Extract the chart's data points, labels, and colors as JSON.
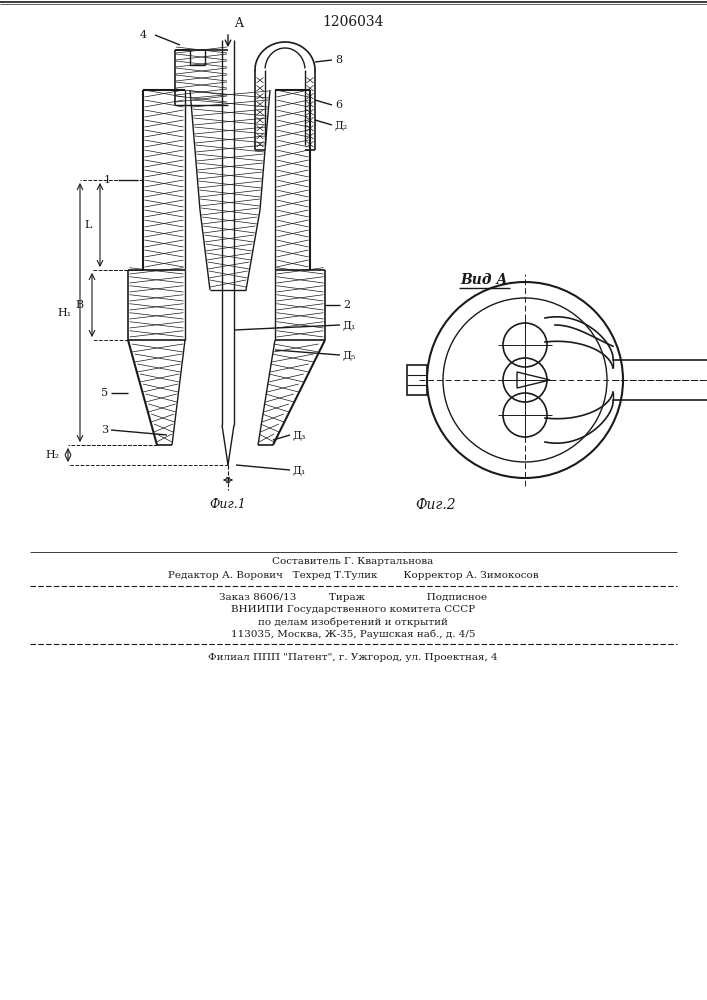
{
  "title": "1206034",
  "fig1_label": "Фиг.1",
  "fig2_label": "Фиг.2",
  "view_label": "Вид A",
  "editor_line": "Редактор А. Ворович   Техред Т.Тулик        Корректор А. Зимокосов",
  "composer_line": "Составитель Г. Квартальнова",
  "order_line": "Заказ 8606/13          Тираж                   Подписное",
  "org_line1": "ВНИИПИ Государственного комитета СССР",
  "org_line2": "по делам изобретений и открытий",
  "org_line3": "113035, Москва, Ж-35, Раушская наб., д. 4/5",
  "filial_line": "Филиал ППП \"Патент\", г. Ужгород, ул. Проектная, 4",
  "bg_color": "#ffffff",
  "line_color": "#1a1a1a"
}
